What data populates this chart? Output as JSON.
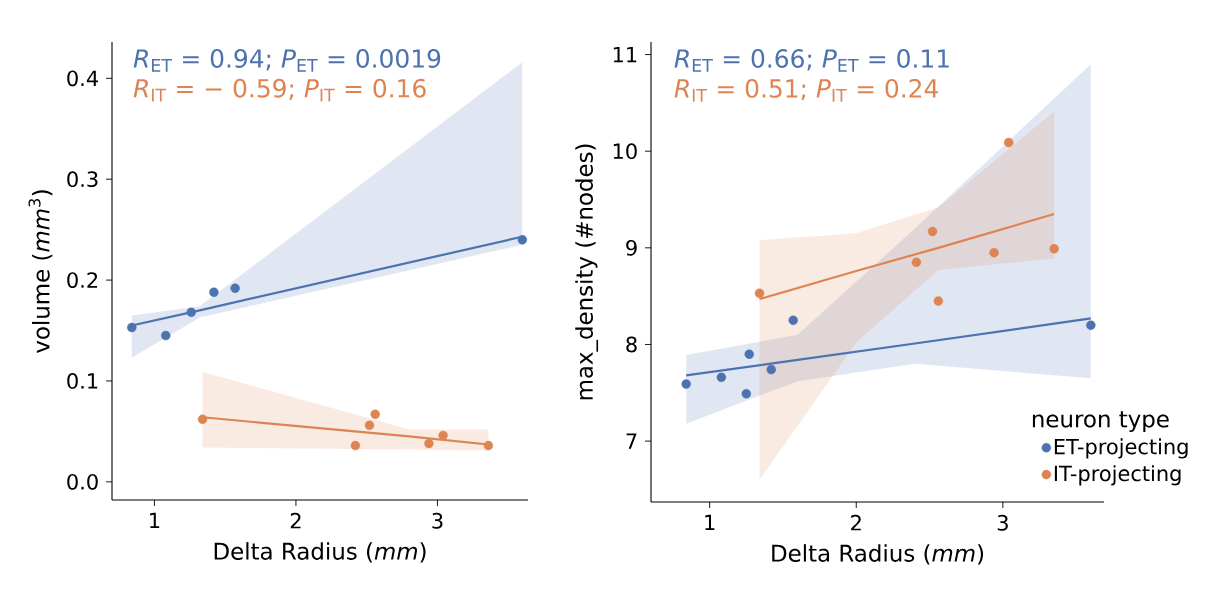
{
  "chart_data": [
    {
      "type": "scatter",
      "marker": "circle",
      "xlabel": "Delta Radius (*mm*)",
      "ylabel": "volume (*mm*$^{3}$)",
      "annotations": [
        "*R*$_{ET}$ = 0.94; *P*$_{ET}$ = 0.0019",
        "*R*$_{IT}$ = − 0.59; *P*$_{IT}$ = 0.16"
      ],
      "xlim": [
        0.7,
        3.64
      ],
      "xticks": [
        1,
        2,
        3
      ],
      "ylim": [
        -0.018,
        0.436
      ],
      "yticks": [
        {
          "value": 0,
          "label": "0.0"
        },
        0.1,
        0.2,
        0.3,
        0.4
      ],
      "series": [
        {
          "color": "#4c72b0",
          "x": [
            0.84,
            1.08,
            1.26,
            1.42,
            1.57,
            3.6
          ],
          "values": [
            0.153,
            0.145,
            0.168,
            0.188,
            0.192,
            0.24
          ]
        },
        {
          "color": "#dd8452",
          "x": [
            1.34,
            2.42,
            2.52,
            2.56,
            2.94,
            3.04,
            3.36
          ],
          "values": [
            0.062,
            0.036,
            0.056,
            0.067,
            0.038,
            0.046,
            0.036
          ]
        },
        {
          "type": "line",
          "marker": "none",
          "color": "#4c72b0",
          "x": [
            0.84,
            1.32,
            3.6
          ],
          "values": [
            0.155,
            0.17,
            0.243
          ],
          "lower": [
            0.123,
            0.163,
            0.235
          ],
          "upper": [
            0.165,
            0.174,
            0.416
          ]
        },
        {
          "type": "line",
          "marker": "none",
          "color": "#dd8452",
          "x": [
            1.34,
            2.8,
            3.36
          ],
          "values": [
            0.064,
            0.045,
            0.037
          ],
          "lower": [
            0.034,
            0.032,
            0.031
          ],
          "upper": [
            0.109,
            0.052,
            0.052
          ]
        }
      ]
    },
    {
      "type": "scatter",
      "marker": "circle",
      "xlabel": "Delta Radius (*mm*)",
      "ylabel": "max_density (#nodes)",
      "annotations": [
        "*R*$_{ET}$ = 0.66; *P*$_{ET}$ = 0.11",
        "*R*$_{IT}$ = 0.51; *P*$_{IT}$ = 0.24"
      ],
      "legend": "bottom right",
      "legend_title": "neuron type",
      "xlim": [
        0.6,
        3.69
      ],
      "xticks": [
        1,
        2,
        3
      ],
      "ylim": [
        6.37,
        11.13
      ],
      "yticks": [
        7,
        8,
        9,
        10,
        11
      ],
      "series": [
        {
          "name": "ET-projecting",
          "color": "#4c72b0",
          "x": [
            0.84,
            1.08,
            1.25,
            1.27,
            1.42,
            1.57,
            3.6
          ],
          "values": [
            7.59,
            7.66,
            7.49,
            7.9,
            7.74,
            8.25,
            8.2
          ]
        },
        {
          "name": "IT-projecting",
          "color": "#dd8452",
          "x": [
            1.34,
            2.41,
            2.52,
            2.56,
            2.94,
            3.04,
            3.35
          ],
          "values": [
            8.53,
            8.85,
            9.17,
            8.45,
            8.95,
            10.09,
            8.99
          ]
        },
        {
          "type": "line",
          "marker": "none",
          "color": "#4c72b0",
          "x": [
            0.84,
            1.6,
            2.4,
            3.6
          ],
          "values": [
            7.68,
            7.84,
            8.01,
            8.27
          ],
          "lower": [
            7.18,
            7.62,
            7.8,
            7.65
          ],
          "upper": [
            7.89,
            8.1,
            9.2,
            10.9
          ]
        },
        {
          "type": "line",
          "marker": "none",
          "color": "#dd8452",
          "x": [
            1.34,
            2.0,
            2.56,
            3.35
          ],
          "values": [
            8.47,
            8.76,
            9.0,
            9.35
          ],
          "lower": [
            6.6,
            8.02,
            8.77,
            8.89
          ],
          "upper": [
            9.08,
            9.15,
            9.42,
            10.41
          ]
        }
      ]
    }
  ]
}
